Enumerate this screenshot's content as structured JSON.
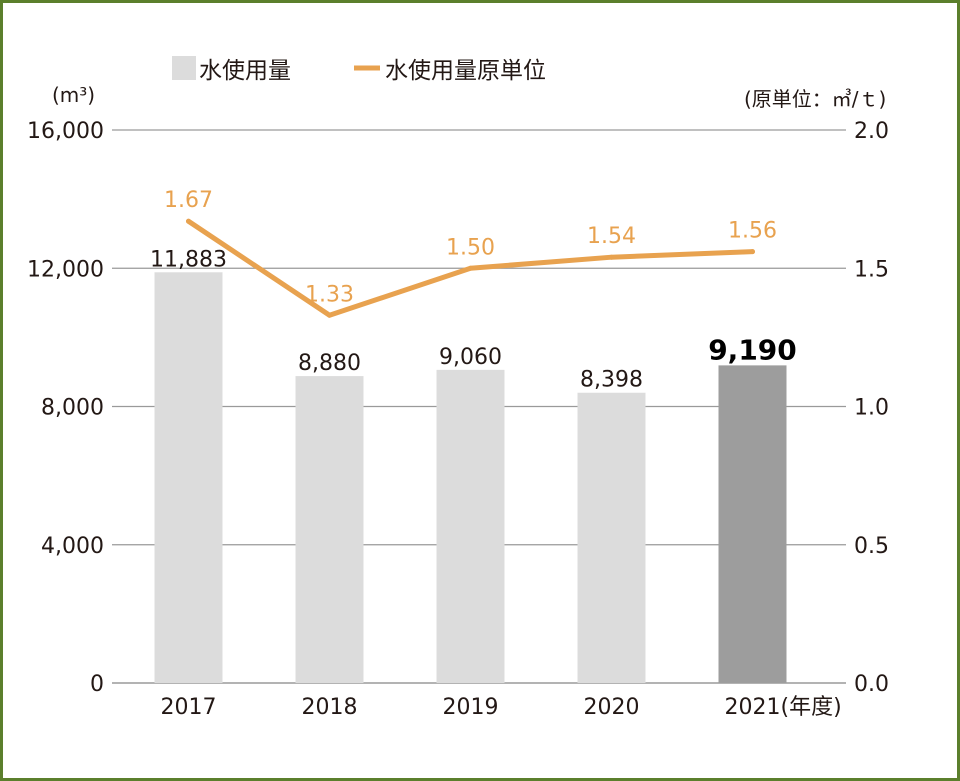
{
  "chart_data": {
    "type": "bar",
    "categories": [
      "2017",
      "2018",
      "2019",
      "2020",
      "2021"
    ],
    "x_suffix_label": "(年度)",
    "series": [
      {
        "name": "水使用量",
        "type": "bar",
        "axis": "left",
        "values": [
          11883,
          8880,
          9060,
          8398,
          9190
        ],
        "value_labels": [
          "11,883",
          "8,880",
          "9,060",
          "8,398",
          "9,190"
        ],
        "color": "#dcdcdc",
        "highlight_index": 4,
        "highlight_color": "#9d9d9d"
      },
      {
        "name": "水使用量原単位",
        "type": "line",
        "axis": "right",
        "values": [
          1.67,
          1.33,
          1.5,
          1.54,
          1.56
        ],
        "value_labels": [
          "1.67",
          "1.33",
          "1.50",
          "1.54",
          "1.56"
        ],
        "color": "#e8a24f"
      }
    ],
    "left_axis": {
      "unit_label": "(m³)",
      "ylim": [
        0,
        16000
      ],
      "ticks": [
        0,
        4000,
        8000,
        12000,
        16000
      ],
      "tick_labels": [
        "0",
        "4,000",
        "8,000",
        "12,000",
        "16,000"
      ]
    },
    "right_axis": {
      "unit_label": "(原単位：㎥/ｔ)",
      "ylim": [
        0,
        2.0
      ],
      "ticks": [
        0.0,
        0.5,
        1.0,
        1.5,
        2.0
      ],
      "tick_labels": [
        "0.0",
        "0.5",
        "1.0",
        "1.5",
        "2.0"
      ]
    },
    "grid": true,
    "legend_position": "top",
    "colors": {
      "frame": "#5b7f2c",
      "grid": "#9a9a9a",
      "line_label": "#e8a24f",
      "text": "#231815"
    }
  }
}
